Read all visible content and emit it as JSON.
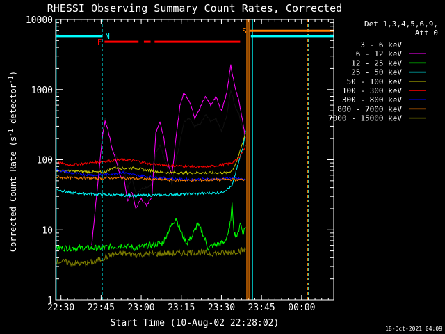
{
  "chart_data": {
    "type": "line",
    "title": "RHESSI Observing Summary Count Rates, Corrected",
    "xlabel": "Start Time (10-Aug-02 22:28:02)",
    "ylabel_main": "Corrected Count Rate (s",
    "ylabel_sup1": "-1",
    "ylabel_mid": " detector",
    "ylabel_sup2": "-1",
    "ylabel_end": ")",
    "xlim": [
      0,
      104
    ],
    "ylim": [
      1,
      10000
    ],
    "yscale": "log",
    "x_unit": "minutes after 22:28",
    "x_ticks": [
      {
        "x": 2,
        "label": "22:30"
      },
      {
        "x": 17,
        "label": "22:45"
      },
      {
        "x": 32,
        "label": "23:00"
      },
      {
        "x": 47,
        "label": "23:15"
      },
      {
        "x": 62,
        "label": "23:30"
      },
      {
        "x": 77,
        "label": "23:45"
      },
      {
        "x": 92,
        "label": "00:00"
      }
    ],
    "y_ticks": [
      {
        "y": 1,
        "label": "1"
      },
      {
        "y": 10,
        "label": "10"
      },
      {
        "y": 100,
        "label": "100"
      },
      {
        "y": 1000,
        "label": "1000"
      },
      {
        "y": 10000,
        "label": "10000"
      }
    ],
    "legend_header": [
      "Det 1,3,4,5,6,9,",
      "Att 0"
    ],
    "legend_position": "right",
    "timestamp": "18-Oct-2021 04:09",
    "series": [
      {
        "name": "3 - 6 keV",
        "color": "#000000",
        "points": [
          [
            17.5,
            250
          ],
          [
            18.5,
            400
          ],
          [
            19.5,
            300
          ],
          [
            21,
            140
          ],
          [
            22.5,
            120
          ],
          [
            24,
            75
          ],
          [
            25.5,
            75
          ],
          [
            27,
            40
          ],
          [
            28.5,
            55
          ],
          [
            30,
            33
          ],
          [
            32,
            38
          ],
          [
            34,
            40
          ],
          [
            36,
            45
          ],
          [
            37.5,
            130
          ],
          [
            39,
            160
          ],
          [
            40.5,
            110
          ],
          [
            42,
            70
          ],
          [
            43.5,
            45
          ],
          [
            45,
            100
          ],
          [
            46.5,
            180
          ],
          [
            48,
            350
          ],
          [
            50,
            400
          ],
          [
            52,
            300
          ],
          [
            54,
            320
          ],
          [
            56,
            450
          ],
          [
            58,
            350
          ],
          [
            60,
            380
          ],
          [
            62,
            250
          ],
          [
            64,
            420
          ],
          [
            65.5,
            1000
          ],
          [
            67,
            600
          ],
          [
            68.5,
            450
          ],
          [
            70,
            280
          ],
          [
            71,
            180
          ]
        ]
      },
      {
        "name": "6 - 12 keV",
        "color": "#ff00ff",
        "points": [
          [
            13.5,
            6
          ],
          [
            17.5,
            220
          ],
          [
            18.5,
            350
          ],
          [
            19.5,
            280
          ],
          [
            21,
            150
          ],
          [
            22.5,
            100
          ],
          [
            24,
            60
          ],
          [
            25.5,
            55
          ],
          [
            27,
            25
          ],
          [
            28.5,
            35
          ],
          [
            30,
            20
          ],
          [
            32,
            28
          ],
          [
            34,
            22
          ],
          [
            36,
            30
          ],
          [
            37.5,
            250
          ],
          [
            39,
            350
          ],
          [
            40.5,
            200
          ],
          [
            42,
            90
          ],
          [
            43.5,
            60
          ],
          [
            45,
            200
          ],
          [
            46.5,
            600
          ],
          [
            48,
            900
          ],
          [
            50,
            700
          ],
          [
            52,
            400
          ],
          [
            54,
            550
          ],
          [
            56,
            800
          ],
          [
            58,
            600
          ],
          [
            60,
            800
          ],
          [
            62,
            500
          ],
          [
            64,
            900
          ],
          [
            65.5,
            2200
          ],
          [
            67,
            1100
          ],
          [
            68.5,
            700
          ],
          [
            70,
            350
          ],
          [
            71,
            200
          ]
        ]
      },
      {
        "name": "12 - 25 keV",
        "color": "#00ff00",
        "points": [
          [
            0,
            5.5
          ],
          [
            13,
            5.5
          ],
          [
            17,
            5.5
          ],
          [
            25,
            6
          ],
          [
            30,
            5.5
          ],
          [
            35,
            6
          ],
          [
            40,
            6.5
          ],
          [
            43,
            11
          ],
          [
            45,
            15
          ],
          [
            47,
            9
          ],
          [
            49,
            6.5
          ],
          [
            51,
            8
          ],
          [
            53,
            12
          ],
          [
            55,
            9
          ],
          [
            57,
            5.5
          ],
          [
            59,
            6
          ],
          [
            63,
            6.5
          ],
          [
            65,
            10
          ],
          [
            66,
            22
          ],
          [
            66.8,
            9
          ],
          [
            68,
            8
          ],
          [
            69,
            13
          ],
          [
            70,
            9
          ],
          [
            71,
            11
          ]
        ]
      },
      {
        "name": "25 - 50 keV",
        "color": "#00ffff",
        "points": [
          [
            0,
            38
          ],
          [
            5,
            34
          ],
          [
            10,
            33
          ],
          [
            17,
            32
          ],
          [
            25,
            31
          ],
          [
            35,
            31
          ],
          [
            45,
            32
          ],
          [
            55,
            33
          ],
          [
            62,
            34
          ],
          [
            66,
            42
          ],
          [
            68,
            80
          ],
          [
            70,
            150
          ],
          [
            71,
            260
          ]
        ]
      },
      {
        "name": "50 - 100 keV",
        "color": "#c8c800",
        "points": [
          [
            0,
            70
          ],
          [
            10,
            68
          ],
          [
            18,
            66
          ],
          [
            22,
            78
          ],
          [
            25,
            75
          ],
          [
            30,
            76
          ],
          [
            33,
            72
          ],
          [
            36,
            70
          ],
          [
            40,
            66
          ],
          [
            45,
            65
          ],
          [
            50,
            65
          ],
          [
            55,
            65
          ],
          [
            60,
            65
          ],
          [
            64,
            65
          ],
          [
            66,
            70
          ],
          [
            68,
            100
          ],
          [
            70,
            180
          ],
          [
            71,
            240
          ]
        ]
      },
      {
        "name": "100 - 300 keV",
        "color": "#ff0000",
        "points": [
          [
            0,
            92
          ],
          [
            5,
            84
          ],
          [
            10,
            88
          ],
          [
            15,
            92
          ],
          [
            20,
            96
          ],
          [
            25,
            100
          ],
          [
            30,
            96
          ],
          [
            35,
            88
          ],
          [
            40,
            84
          ],
          [
            45,
            82
          ],
          [
            50,
            80
          ],
          [
            55,
            78
          ],
          [
            60,
            82
          ],
          [
            65,
            88
          ],
          [
            68,
            100
          ],
          [
            70,
            130
          ],
          [
            71,
            160
          ]
        ]
      },
      {
        "name": "300 - 800 keV",
        "color": "#0000ff",
        "points": [
          [
            0,
            72
          ],
          [
            5,
            65
          ],
          [
            10,
            62
          ],
          [
            15,
            60
          ],
          [
            20,
            62
          ],
          [
            25,
            66
          ],
          [
            30,
            60
          ],
          [
            35,
            57
          ],
          [
            40,
            55
          ],
          [
            45,
            53
          ],
          [
            50,
            52
          ],
          [
            55,
            53
          ],
          [
            60,
            53
          ],
          [
            65,
            55
          ],
          [
            68,
            54
          ],
          [
            71,
            52
          ]
        ]
      },
      {
        "name": "800 - 7000 keV",
        "color": "#ff8000",
        "points": [
          [
            0,
            56
          ],
          [
            5,
            55
          ],
          [
            10,
            55
          ],
          [
            15,
            54
          ],
          [
            20,
            55
          ],
          [
            25,
            55
          ],
          [
            30,
            54
          ],
          [
            35,
            53
          ],
          [
            40,
            52
          ],
          [
            45,
            51
          ],
          [
            50,
            51
          ],
          [
            55,
            51
          ],
          [
            60,
            52
          ],
          [
            65,
            52
          ],
          [
            68,
            52
          ],
          [
            71,
            52
          ]
        ]
      },
      {
        "name": "7000 - 15000 keV",
        "color": "#808000",
        "points": [
          [
            0,
            3.6
          ],
          [
            5,
            3.4
          ],
          [
            10,
            3.3
          ],
          [
            15,
            3.5
          ],
          [
            17,
            3.8
          ],
          [
            20,
            4.3
          ],
          [
            25,
            4.6
          ],
          [
            30,
            4.4
          ],
          [
            35,
            4.5
          ],
          [
            40,
            4.6
          ],
          [
            45,
            4.6
          ],
          [
            50,
            4.8
          ],
          [
            55,
            4.7
          ],
          [
            60,
            4.6
          ],
          [
            65,
            4.8
          ],
          [
            68,
            5
          ],
          [
            71,
            5.2
          ]
        ]
      }
    ],
    "flag_bars": [
      {
        "letter": "N",
        "color": "#00ffff",
        "x_from": 0,
        "x_to": 17.5,
        "y": 5800
      },
      {
        "letter": "F",
        "color": "#ff0000",
        "segments": [
          [
            18.3,
            31
          ],
          [
            33,
            35.5
          ],
          [
            37,
            69
          ]
        ],
        "y": 4800
      },
      {
        "letter": "S",
        "color": "#ff8000",
        "x_from": 72.5,
        "x_to": 104,
        "y": 6900
      },
      {
        "letter": "",
        "color": "#00ffff",
        "x_from": 73,
        "x_to": 104,
        "y": 5800
      }
    ],
    "vertical_lines": [
      {
        "x": 17.4,
        "color": "#00ffff",
        "style": "dashed"
      },
      {
        "x": 71.5,
        "color": "#ff8000",
        "style": "solid"
      },
      {
        "x": 72.3,
        "color": "#ff8000",
        "style": "solid"
      },
      {
        "x": 73.6,
        "color": "#00ffff",
        "style": "solid"
      },
      {
        "x": 94.6,
        "color": "#00ffff",
        "style": "dashed"
      },
      {
        "x": 94.3,
        "color": "#ff8000",
        "style": "dashed"
      },
      {
        "x": 0.2,
        "color": "#00ffff",
        "style": "solid"
      }
    ]
  }
}
